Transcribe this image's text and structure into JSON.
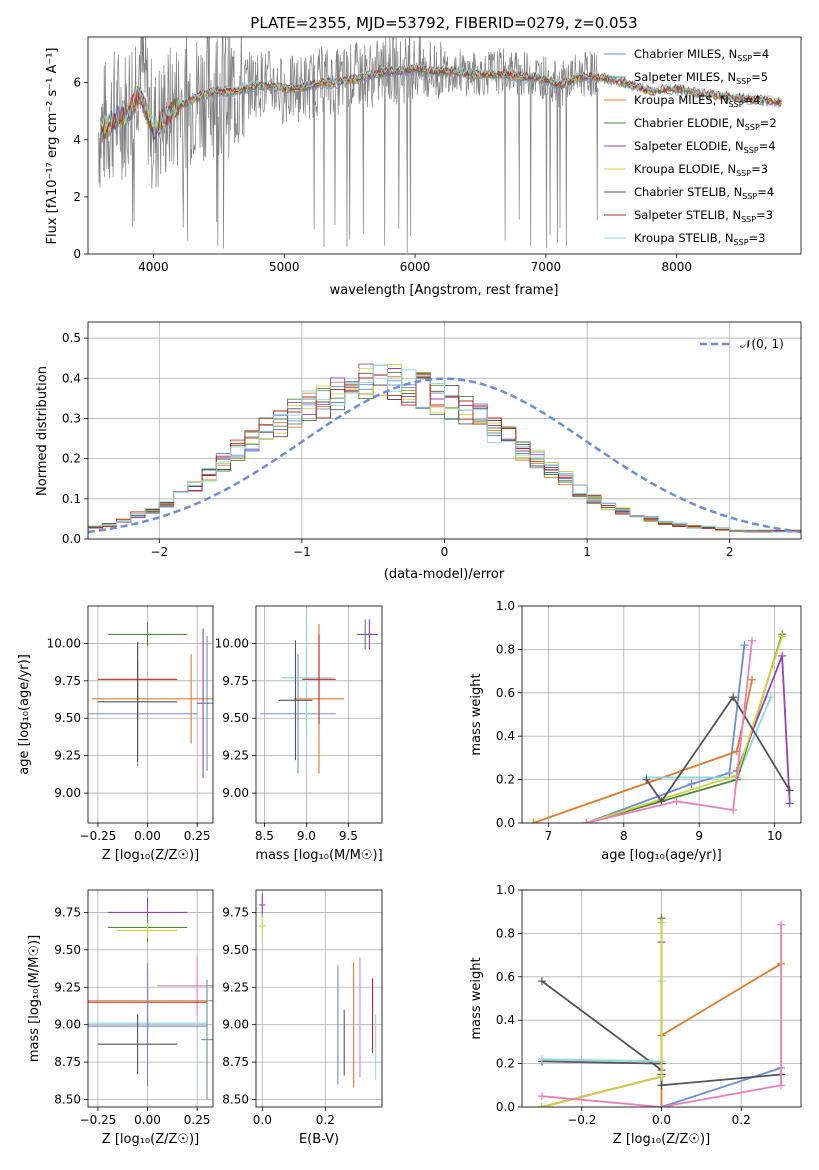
{
  "colors": {
    "series": [
      "#6a8fd8",
      "#5e9aa0",
      "#e07b2a",
      "#4f8a3c",
      "#9b3fb8",
      "#d4d43a",
      "#555555",
      "#c0281f",
      "#8ad8e0"
    ],
    "data": "#808080",
    "gaussian": "#6a8fd8",
    "grid": "#b0b0b0"
  },
  "chart_data": [
    {
      "type": "line",
      "title": "PLATE=2355, MJD=53792, FIBERID=0279, z=0.053",
      "xlabel": "wavelength [Angstrom, rest frame]",
      "ylabel": "Flux [fλ10⁻¹⁷ erg cm⁻² s⁻¹ A⁻¹]",
      "xlim": [
        3500,
        8950
      ],
      "ylim": [
        0,
        7.6
      ],
      "xticks": [
        "4000",
        "5000",
        "6000",
        "7000",
        "8000"
      ],
      "yticks": [
        "0",
        "2",
        "4",
        "6"
      ],
      "grid": false,
      "legend_position": "top-right",
      "data_series": {
        "x": [
          3580,
          3650,
          3700,
          3800,
          3900,
          4000,
          4100,
          4200,
          4300,
          4400,
          4500,
          4600,
          4700,
          4800,
          4900,
          5000,
          5100,
          5200,
          5300,
          5400,
          5500,
          5600,
          5700,
          5800,
          5900,
          6000,
          6100,
          6200,
          6300,
          6400,
          6500,
          6600,
          6700,
          6800,
          6900,
          7000,
          7100,
          7200,
          7300,
          7400
        ],
        "y": [
          4.3,
          4.6,
          4.9,
          5.0,
          6.9,
          4.2,
          4.9,
          5.3,
          5.5,
          5.7,
          5.8,
          5.7,
          5.9,
          6.0,
          6.0,
          5.7,
          5.8,
          5.9,
          6.1,
          6.0,
          6.2,
          6.3,
          6.3,
          6.5,
          6.4,
          6.5,
          6.4,
          6.4,
          6.5,
          6.3,
          6.3,
          6.4,
          6.4,
          6.3,
          6.3,
          6.2,
          5.9,
          6.2,
          6.3,
          6.3
        ]
      },
      "model": {
        "x": [
          3580,
          3700,
          3800,
          3900,
          4000,
          4100,
          4200,
          4300,
          4400,
          4500,
          4600,
          4700,
          4800,
          4900,
          5000,
          5100,
          5200,
          5300,
          5400,
          5500,
          5600,
          5700,
          5800,
          5900,
          6000,
          6100,
          6200,
          6300,
          6400,
          6500,
          6600,
          6700,
          6800,
          6900,
          7000,
          7100,
          7200,
          7300,
          7400,
          7600,
          7800,
          8000,
          8200,
          8400,
          8600,
          8800
        ],
        "y": [
          4.2,
          4.7,
          4.9,
          5.6,
          4.3,
          4.8,
          5.2,
          5.4,
          5.6,
          5.7,
          5.7,
          5.8,
          5.9,
          5.9,
          5.8,
          5.8,
          5.9,
          6.0,
          6.0,
          6.1,
          6.2,
          6.3,
          6.4,
          6.4,
          6.5,
          6.4,
          6.4,
          6.4,
          6.3,
          6.3,
          6.3,
          6.3,
          6.2,
          6.2,
          6.1,
          5.9,
          6.1,
          6.2,
          6.2,
          6.0,
          5.7,
          5.8,
          5.6,
          5.5,
          5.4,
          5.3
        ]
      },
      "legend": [
        "Chabrier MILES, N_SSP=4",
        "Salpeter MILES, N_SSP=5",
        "Kroupa MILES, N_SSP=4",
        "Chabrier ELODIE, N_SSP=2",
        "Salpeter ELODIE, N_SSP=4",
        "Kroupa ELODIE, N_SSP=3",
        "Chabrier STELIB, N_SSP=4",
        "Salpeter STELIB, N_SSP=3",
        "Kroupa STELIB, N_SSP=3"
      ],
      "legend_main": [
        "Chabrier MILES, N",
        "Salpeter MILES, N",
        "Kroupa MILES, N",
        "Chabrier ELODIE, N",
        "Salpeter ELODIE, N",
        "Kroupa ELODIE, N",
        "Chabrier STELIB, N",
        "Salpeter STELIB, N",
        "Kroupa STELIB, N"
      ],
      "legend_sub": "SSP",
      "legend_tail": [
        "=4",
        "=5",
        "=4",
        "=2",
        "=4",
        "=3",
        "=4",
        "=3",
        "=3"
      ]
    },
    {
      "type": "line",
      "xlabel": "(data-model)/error",
      "ylabel": "Normed distribution",
      "xlim": [
        -2.5,
        2.5
      ],
      "ylim": [
        0,
        0.54
      ],
      "xticks": [
        "−2",
        "−1",
        "0",
        "1",
        "2"
      ],
      "yticks": [
        "0.0",
        "0.1",
        "0.2",
        "0.3",
        "0.4",
        "0.5"
      ],
      "grid": true,
      "legend": [
        "𝒩(0, 1)"
      ],
      "legend_position": "top-right",
      "bin_width": 0.1,
      "histogram": [
        0.03,
        0.035,
        0.045,
        0.06,
        0.07,
        0.09,
        0.11,
        0.13,
        0.16,
        0.19,
        0.22,
        0.24,
        0.27,
        0.29,
        0.31,
        0.33,
        0.34,
        0.36,
        0.37,
        0.39,
        0.4,
        0.39,
        0.38,
        0.37,
        0.35,
        0.34,
        0.32,
        0.3,
        0.27,
        0.25,
        0.22,
        0.2,
        0.17,
        0.15,
        0.12,
        0.1,
        0.08,
        0.07,
        0.06,
        0.05,
        0.04,
        0.035,
        0.03,
        0.03,
        0.025,
        0.02,
        0.02,
        0.02,
        0.02,
        0.02
      ]
    },
    {
      "type": "scatter",
      "xlabel": "Z [log₁₀(Z/Z☉)]",
      "ylabel": "age  [log₁₀(age/yr)]",
      "xlim": [
        -0.3,
        0.33
      ],
      "ylim": [
        8.8,
        10.25
      ],
      "xticks": [
        -0.25,
        0,
        0.25
      ],
      "xtick_labels": [
        "−0.25",
        "0.00",
        "0.25"
      ],
      "yticks": [
        9,
        9.25,
        9.5,
        9.75,
        10
      ],
      "ytick_labels": [
        "9.00",
        "9.25",
        "9.50",
        "9.75",
        "10.00"
      ],
      "grid": true,
      "points": [
        {
          "x": -0.05,
          "y": 9.53,
          "xerr": 0.3,
          "yerr": 0.35,
          "c": 0
        },
        {
          "x": 0.0,
          "y": 10.06,
          "xerr": 0.2,
          "yerr": 0.08,
          "c": 3
        },
        {
          "x": 0.22,
          "y": 9.63,
          "xerr": 0.5,
          "yerr": 0.3,
          "c": 2
        },
        {
          "x": -0.05,
          "y": 9.76,
          "xerr": 0.2,
          "yerr": 0.25,
          "c": 7
        },
        {
          "x": -0.05,
          "y": 9.61,
          "xerr": 0.2,
          "yerr": 0.4,
          "c": 6
        },
        {
          "x": 0.28,
          "y": 9.6,
          "xerr": 0.03,
          "yerr": 0.5,
          "c": 4
        },
        {
          "x": 0.3,
          "y": 9.6,
          "xerr": 0.03,
          "yerr": 0.45,
          "c": 1
        }
      ]
    },
    {
      "type": "scatter",
      "xlabel": "mass [log₁₀(M/M☉)]",
      "xlim": [
        8.4,
        9.9
      ],
      "ylim": [
        8.8,
        10.25
      ],
      "xticks": [
        8.5,
        9,
        9.5
      ],
      "xtick_labels": [
        "8.5",
        "9.0",
        "9.5"
      ],
      "yticks": [
        9,
        9.25,
        9.5,
        9.75,
        10
      ],
      "ytick_labels": [
        "9.00",
        "9.25",
        "9.50",
        "9.75",
        "10.00"
      ],
      "grid": true,
      "points": [
        {
          "x": 8.9,
          "y": 9.53,
          "xerr": 0.45,
          "yerr": 0.4,
          "c": 0
        },
        {
          "x": 9.0,
          "y": 9.77,
          "xerr": 0.3,
          "yerr": 0.4,
          "c": 8
        },
        {
          "x": 9.15,
          "y": 9.63,
          "xerr": 0.3,
          "yerr": 0.5,
          "c": 2
        },
        {
          "x": 9.15,
          "y": 9.76,
          "xerr": 0.2,
          "yerr": 0.3,
          "c": 7
        },
        {
          "x": 8.87,
          "y": 9.62,
          "xerr": 0.2,
          "yerr": 0.4,
          "c": 6
        },
        {
          "x": 9.7,
          "y": 10.06,
          "xerr": 0.1,
          "yerr": 0.1,
          "c": 3
        },
        {
          "x": 9.75,
          "y": 10.06,
          "xerr": 0.1,
          "yerr": 0.1,
          "c": 4
        }
      ]
    },
    {
      "type": "line",
      "xlabel": "age  [log₁₀(age/yr)]",
      "ylabel": "mass weight",
      "xlim": [
        6.65,
        10.35
      ],
      "ylim": [
        0,
        1.0
      ],
      "xticks": [
        7,
        8,
        9,
        10
      ],
      "xtick_labels": [
        "7",
        "8",
        "9",
        "10"
      ],
      "yticks": [
        0,
        0.2,
        0.4,
        0.6,
        0.8,
        1.0
      ],
      "ytick_labels": [
        "0.0",
        "0.2",
        "0.4",
        "0.6",
        "0.8",
        "1.0"
      ],
      "grid": true,
      "series": [
        {
          "x": [
            7.5,
            8.9,
            9.4,
            9.6
          ],
          "y": [
            0.0,
            0.18,
            0.23,
            0.82
          ],
          "c": 0
        },
        {
          "x": [
            6.8,
            9.5,
            9.7
          ],
          "y": [
            0.0,
            0.33,
            0.66
          ],
          "c": 2
        },
        {
          "x": [
            8.3,
            9.5,
            9.95
          ],
          "y": [
            0.21,
            0.21,
            0.58
          ],
          "c": 8
        },
        {
          "x": [
            7.5,
            9.5,
            10.1
          ],
          "y": [
            0.0,
            0.2,
            0.87
          ],
          "c": 3
        },
        {
          "x": [
            9.5,
            10.1,
            10.2
          ],
          "y": [
            0.24,
            0.77,
            0.09
          ],
          "c": 4
        },
        {
          "x": [
            7.5,
            9.5,
            10.1
          ],
          "y": [
            0.0,
            0.22,
            0.86
          ],
          "c": 5
        },
        {
          "x": [
            8.3,
            8.5,
            9.45,
            10.2
          ],
          "y": [
            0.2,
            0.1,
            0.58,
            0.15
          ],
          "c": 6
        },
        {
          "x": [
            7.5,
            8.7,
            9.45,
            9.7
          ],
          "y": [
            0.0,
            0.1,
            0.06,
            0.84
          ],
          "c": 9
        }
      ]
    },
    {
      "type": "scatter",
      "xlabel": "Z [log₁₀(Z/Z☉)]",
      "ylabel": "mass [log₁₀(M/M☉)]",
      "xlim": [
        -0.3,
        0.33
      ],
      "ylim": [
        8.45,
        9.9
      ],
      "xticks": [
        -0.25,
        0,
        0.25
      ],
      "xtick_labels": [
        "−0.25",
        "0.00",
        "0.25"
      ],
      "yticks": [
        8.5,
        8.75,
        9,
        9.25,
        9.5,
        9.75
      ],
      "ytick_labels": [
        "8.50",
        "8.75",
        "9.00",
        "9.25",
        "9.50",
        "9.75"
      ],
      "grid": true,
      "points": [
        {
          "x": 0.0,
          "y": 9.75,
          "xerr": 0.2,
          "yerr": 0.1,
          "c": 4
        },
        {
          "x": 0.0,
          "y": 9.65,
          "xerr": 0.2,
          "yerr": 0.1,
          "c": 3
        },
        {
          "x": 0.0,
          "y": 9.63,
          "xerr": 0.15,
          "yerr": 0.05,
          "c": 5
        },
        {
          "x": 0.25,
          "y": 9.26,
          "xerr": 0.2,
          "yerr": 0.2,
          "c": 9
        },
        {
          "x": 0.0,
          "y": 9.15,
          "xerr": 0.3,
          "yerr": 0.2,
          "c": 7
        },
        {
          "x": 0.0,
          "y": 9.16,
          "xerr": 0.5,
          "yerr": 0.25,
          "c": 2
        },
        {
          "x": 0.0,
          "y": 9.01,
          "xerr": 0.3,
          "yerr": 0.1,
          "c": 8
        },
        {
          "x": 0.0,
          "y": 8.99,
          "xerr": 0.3,
          "yerr": 0.4,
          "c": 0
        },
        {
          "x": -0.05,
          "y": 8.87,
          "xerr": 0.2,
          "yerr": 0.2,
          "c": 6
        },
        {
          "x": 0.3,
          "y": 8.9,
          "xerr": 0.03,
          "yerr": 0.4,
          "c": 1
        }
      ]
    },
    {
      "type": "scatter",
      "xlabel": "E(B-V)",
      "xlim": [
        -0.02,
        0.38
      ],
      "ylim": [
        8.45,
        9.9
      ],
      "xticks": [
        0,
        0.2
      ],
      "xtick_labels": [
        "0.0",
        "0.2"
      ],
      "yticks": [
        8.5,
        8.75,
        9,
        9.25,
        9.5,
        9.75
      ],
      "ytick_labels": [
        "8.50",
        "8.75",
        "9.00",
        "9.25",
        "9.50",
        "9.75"
      ],
      "grid": true,
      "points": [
        {
          "x": 0.0,
          "y": 9.8,
          "xerr": 0.01,
          "yerr": 0.08,
          "c": 4
        },
        {
          "x": 0.0,
          "y": 9.66,
          "xerr": 0.01,
          "yerr": 0.08,
          "c": 5
        },
        {
          "x": 0.24,
          "y": 9.0,
          "xerr": 0.0,
          "yerr": 0.4,
          "c": 0
        },
        {
          "x": 0.26,
          "y": 8.88,
          "xerr": 0.0,
          "yerr": 0.22,
          "c": 6
        },
        {
          "x": 0.29,
          "y": 9.0,
          "xerr": 0.0,
          "yerr": 0.42,
          "c": 2
        },
        {
          "x": 0.31,
          "y": 9.05,
          "xerr": 0.0,
          "yerr": 0.4,
          "c": 9
        },
        {
          "x": 0.35,
          "y": 9.06,
          "xerr": 0.0,
          "yerr": 0.25,
          "c": 7
        },
        {
          "x": 0.36,
          "y": 8.85,
          "xerr": 0.0,
          "yerr": 0.22,
          "c": 8
        }
      ]
    },
    {
      "type": "line",
      "xlabel": "Z [log₁₀(Z/Z☉)]",
      "ylabel": "mass weight",
      "xlim": [
        -0.35,
        0.35
      ],
      "ylim": [
        0,
        1.0
      ],
      "xticks": [
        -0.2,
        0,
        0.2
      ],
      "xtick_labels": [
        "−0.2",
        "0.0",
        "0.2"
      ],
      "yticks": [
        0,
        0.2,
        0.4,
        0.6,
        0.8,
        1.0
      ],
      "ytick_labels": [
        "0.0",
        "0.2",
        "0.4",
        "0.6",
        "0.8",
        "1.0"
      ],
      "grid": true,
      "series": [
        {
          "x": [
            0.0,
            0.0,
            0.3
          ],
          "y": [
            0.0,
            0.0,
            0.18
          ],
          "c": 0
        },
        {
          "x": [
            0.0,
            0.0,
            0.3
          ],
          "y": [
            0.0,
            0.33,
            0.66
          ],
          "c": 2
        },
        {
          "x": [
            -0.3,
            0.0,
            0.0
          ],
          "y": [
            0.58,
            0.17,
            0.15
          ],
          "c": 6
        },
        {
          "x": [
            -0.3,
            0.0,
            0.0,
            0.3
          ],
          "y": [
            0.21,
            0.2,
            0.1,
            0.15
          ],
          "c": 6
        },
        {
          "x": [
            -0.3,
            0.0,
            0.0
          ],
          "y": [
            0.22,
            0.21,
            0.58
          ],
          "c": 8
        },
        {
          "x": [
            -0.3,
            0.0,
            0.0
          ],
          "y": [
            0.0,
            0.14,
            0.87
          ],
          "c": 3
        },
        {
          "x": [
            -0.3,
            0.0,
            0.0
          ],
          "y": [
            0.0,
            0.14,
            0.76
          ],
          "c": 4
        },
        {
          "x": [
            -0.3,
            0.0,
            0.0
          ],
          "y": [
            0.0,
            0.14,
            0.85
          ],
          "c": 5
        },
        {
          "x": [
            -0.3,
            0.0,
            0.3,
            0.3
          ],
          "y": [
            0.05,
            0.0,
            0.1,
            0.84
          ],
          "c": 9
        }
      ]
    }
  ]
}
